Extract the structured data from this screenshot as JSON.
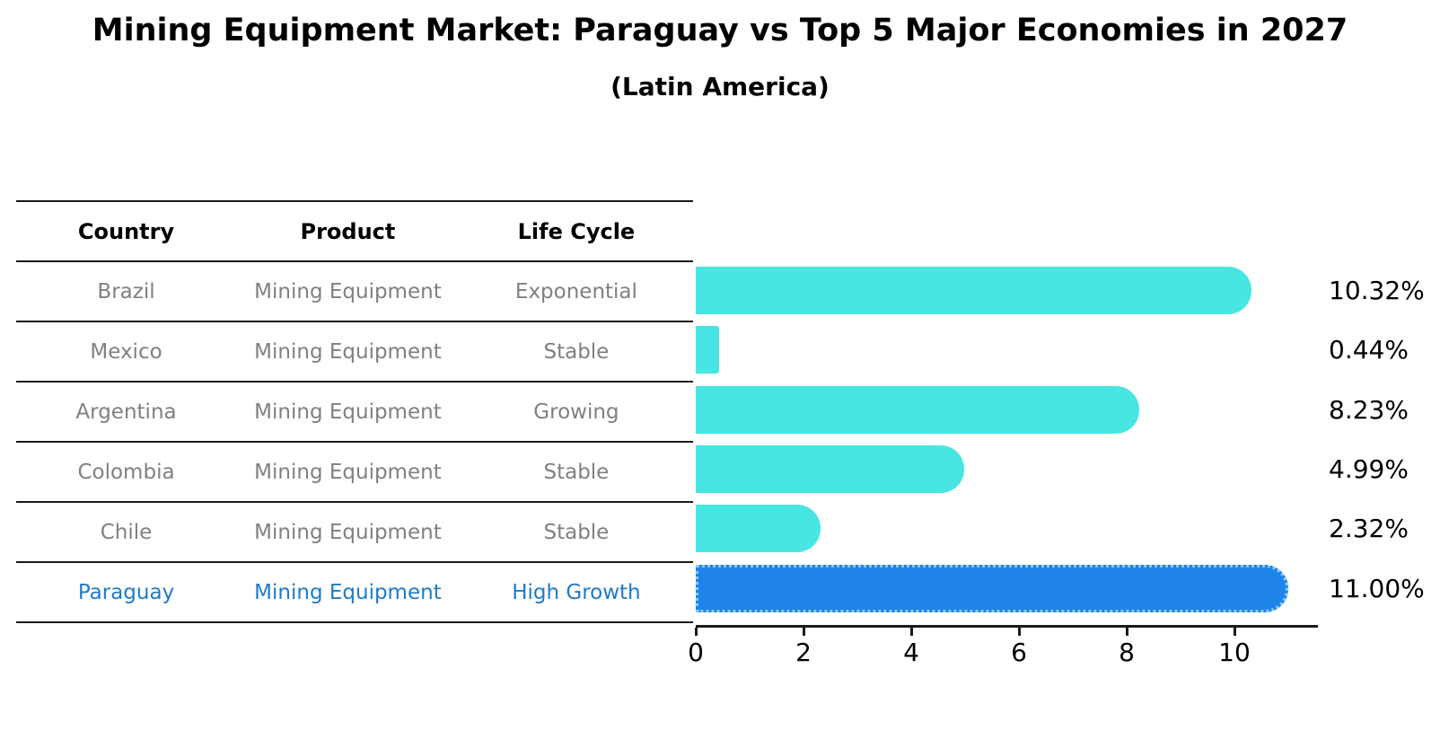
{
  "table": {
    "headers": [
      "Country",
      "Product",
      "Life Cycle"
    ],
    "rows": [
      {
        "country": "Brazil",
        "product": "Mining Equipment",
        "life_cycle": "Exponential",
        "highlight": false
      },
      {
        "country": "Mexico",
        "product": "Mining Equipment",
        "life_cycle": "Stable",
        "highlight": false
      },
      {
        "country": "Argentina",
        "product": "Mining Equipment",
        "life_cycle": "Growing",
        "highlight": false
      },
      {
        "country": "Colombia",
        "product": "Mining Equipment",
        "life_cycle": "Stable",
        "highlight": false
      },
      {
        "country": "Chile",
        "product": "Mining Equipment",
        "life_cycle": "Stable",
        "highlight": false
      },
      {
        "country": "Paraguay",
        "product": "Mining Equipment",
        "life_cycle": "High Growth",
        "highlight": true
      }
    ]
  },
  "chart_data": {
    "type": "bar",
    "orientation": "horizontal",
    "title": "Mining Equipment Market: Paraguay vs Top 5 Major Economies in 2027",
    "subtitle": "(Latin America)",
    "categories": [
      "Brazil",
      "Mexico",
      "Argentina",
      "Colombia",
      "Chile",
      "Paraguay"
    ],
    "values": [
      10.32,
      0.44,
      8.23,
      4.99,
      2.32,
      11.0
    ],
    "value_labels": [
      "10.32%",
      "0.44%",
      "8.23%",
      "4.99%",
      "2.32%",
      "11.00%"
    ],
    "xlabel": "",
    "ylabel": "",
    "xlim": [
      0,
      11.55
    ],
    "xticks": [
      0,
      2,
      4,
      6,
      8,
      10
    ],
    "grid": false,
    "legend": false,
    "bar_color": "#48e6e2",
    "highlight_index": 5,
    "highlight_color": "#1e84ea",
    "highlight_border_color": "#8ccaf8",
    "table_text_color": "#808080",
    "highlight_text_color": "#1f7ac9"
  }
}
